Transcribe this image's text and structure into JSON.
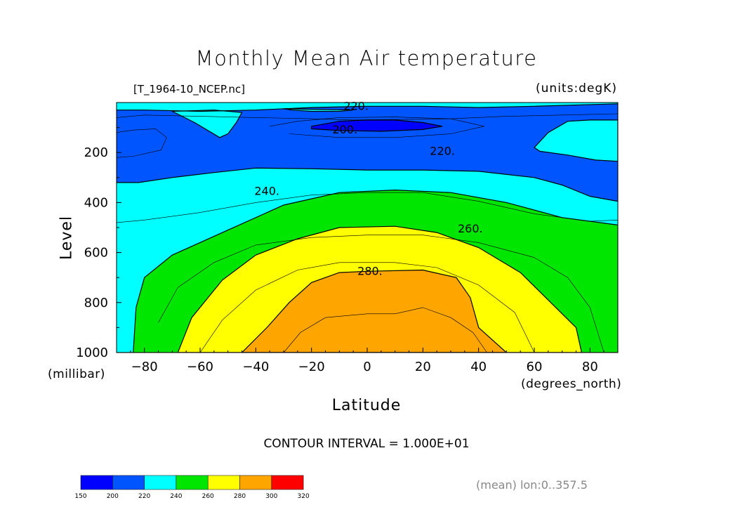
{
  "chart_data": {
    "type": "contour",
    "title": "Monthly Mean Air temperature",
    "file": "[T_1964-10_NCEP.nc]",
    "units": "(units:degK)",
    "xlabel": "Latitude",
    "x_units": "(degrees_north)",
    "ylabel": "Level",
    "y_units": "(millibar)",
    "xlim": [
      -90,
      90
    ],
    "ylim": [
      0,
      1000
    ],
    "y_inverted": true,
    "x_ticks": [
      -80,
      -60,
      -40,
      -20,
      0,
      20,
      40,
      60,
      80
    ],
    "y_ticks": [
      200,
      400,
      600,
      800,
      1000
    ],
    "contour_interval_text": "CONTOUR INTERVAL = 1.000E+01",
    "contour_labels": [
      {
        "text": "220.",
        "x": -4,
        "y": 15
      },
      {
        "text": "200.",
        "x": -8,
        "y": 110
      },
      {
        "text": "220.",
        "x": 27,
        "y": 195
      },
      {
        "text": "240.",
        "x": -36,
        "y": 355
      },
      {
        "text": "260.",
        "x": 37,
        "y": 505
      },
      {
        "text": "280.",
        "x": 1,
        "y": 675
      }
    ],
    "levels": [
      150,
      200,
      220,
      240,
      260,
      280,
      300,
      320
    ],
    "band_colors": [
      "#0000ff",
      "#0055ff",
      "#00ffff",
      "#00e600",
      "#ffff00",
      "#ffa500",
      "#ff0000"
    ],
    "regions": [
      {
        "band": "#00ffff",
        "lower": 220,
        "points": [
          [
            -90,
            0
          ],
          [
            90,
            0
          ],
          [
            90,
            1000
          ],
          [
            -90,
            1000
          ]
        ]
      },
      {
        "band": "#00e600",
        "lower": 240,
        "points": [
          [
            -90,
            1000
          ],
          [
            -84,
            1000
          ],
          [
            -83,
            820
          ],
          [
            -80,
            700
          ],
          [
            -70,
            610
          ],
          [
            -50,
            510
          ],
          [
            -30,
            410
          ],
          [
            -10,
            360
          ],
          [
            10,
            350
          ],
          [
            30,
            360
          ],
          [
            50,
            400
          ],
          [
            70,
            460
          ],
          [
            90,
            490
          ],
          [
            90,
            1000
          ]
        ]
      },
      {
        "band": "#ffff00",
        "lower": 260,
        "points": [
          [
            -68,
            1000
          ],
          [
            -63,
            860
          ],
          [
            -52,
            710
          ],
          [
            -40,
            610
          ],
          [
            -25,
            545
          ],
          [
            -10,
            500
          ],
          [
            10,
            495
          ],
          [
            25,
            520
          ],
          [
            40,
            580
          ],
          [
            55,
            680
          ],
          [
            65,
            790
          ],
          [
            75,
            900
          ],
          [
            77,
            1000
          ]
        ]
      },
      {
        "band": "#ffa500",
        "lower": 280,
        "points": [
          [
            -45,
            1000
          ],
          [
            -36,
            900
          ],
          [
            -28,
            800
          ],
          [
            -20,
            720
          ],
          [
            -10,
            680
          ],
          [
            0,
            675
          ],
          [
            20,
            670
          ],
          [
            32,
            700
          ],
          [
            37,
            780
          ],
          [
            40,
            900
          ],
          [
            50,
            1000
          ]
        ]
      },
      {
        "band": "#0055ff",
        "lower": 200,
        "points": [
          [
            -90,
            30
          ],
          [
            -80,
            30
          ],
          [
            -60,
            35
          ],
          [
            -40,
            30
          ],
          [
            -20,
            20
          ],
          [
            0,
            15
          ],
          [
            20,
            15
          ],
          [
            40,
            20
          ],
          [
            60,
            15
          ],
          [
            90,
            5
          ],
          [
            90,
            395
          ],
          [
            80,
            375
          ],
          [
            70,
            330
          ],
          [
            60,
            300
          ],
          [
            40,
            275
          ],
          [
            20,
            270
          ],
          [
            0,
            270
          ],
          [
            -20,
            265
          ],
          [
            -40,
            262
          ],
          [
            -55,
            280
          ],
          [
            -70,
            300
          ],
          [
            -82,
            320
          ],
          [
            -90,
            320
          ]
        ]
      },
      {
        "band": "#00ffff",
        "lower": 220,
        "points": [
          [
            -27,
            30
          ],
          [
            -20,
            35
          ],
          [
            -10,
            35
          ],
          [
            -5,
            30
          ],
          [
            -30,
            25
          ]
        ]
      },
      {
        "band": "#00ffff",
        "lower": 220,
        "points": [
          [
            -70,
            35
          ],
          [
            -62,
            80
          ],
          [
            -56,
            120
          ],
          [
            -53,
            140
          ],
          [
            -50,
            125
          ],
          [
            -47,
            80
          ],
          [
            -45,
            40
          ],
          [
            -55,
            30
          ]
        ]
      },
      {
        "band": "#00ffff",
        "lower": 220,
        "points": [
          [
            60,
            180
          ],
          [
            65,
            120
          ],
          [
            72,
            75
          ],
          [
            80,
            70
          ],
          [
            90,
            70
          ],
          [
            90,
            235
          ],
          [
            82,
            230
          ],
          [
            72,
            210
          ],
          [
            62,
            195
          ]
        ]
      },
      {
        "band": "#0000ff",
        "lower": 150,
        "points": [
          [
            -20,
            95
          ],
          [
            -10,
            75
          ],
          [
            0,
            70
          ],
          [
            10,
            70
          ],
          [
            20,
            80
          ],
          [
            27,
            95
          ],
          [
            20,
            108
          ],
          [
            5,
            115
          ],
          [
            -10,
            112
          ],
          [
            -20,
            105
          ]
        ]
      }
    ],
    "lines": [
      {
        "points": [
          [
            -90,
            60
          ],
          [
            -80,
            50
          ],
          [
            -60,
            55
          ],
          [
            -40,
            60
          ],
          [
            -20,
            65
          ],
          [
            -5,
            70
          ],
          [
            10,
            68
          ],
          [
            30,
            65
          ],
          [
            50,
            55
          ],
          [
            70,
            50
          ],
          [
            90,
            45
          ]
        ]
      },
      {
        "points": [
          [
            -90,
            120
          ],
          [
            -84,
            110
          ],
          [
            -76,
            105
          ],
          [
            -72,
            140
          ],
          [
            -74,
            190
          ],
          [
            -84,
            215
          ],
          [
            -90,
            220
          ]
        ]
      },
      {
        "points": [
          [
            -35,
            95
          ],
          [
            -25,
            75
          ],
          [
            -10,
            60
          ],
          [
            10,
            58
          ],
          [
            30,
            65
          ],
          [
            42,
            95
          ],
          [
            30,
            125
          ],
          [
            10,
            140
          ],
          [
            -10,
            140
          ],
          [
            -28,
            125
          ]
        ]
      },
      {
        "points": [
          [
            -90,
            480
          ],
          [
            -80,
            470
          ],
          [
            -60,
            440
          ],
          [
            -40,
            400
          ],
          [
            -20,
            370
          ],
          [
            0,
            360
          ],
          [
            20,
            360
          ],
          [
            40,
            395
          ],
          [
            60,
            445
          ],
          [
            80,
            475
          ],
          [
            90,
            470
          ]
        ]
      },
      {
        "points": [
          [
            -75,
            880
          ],
          [
            -68,
            740
          ],
          [
            -55,
            640
          ],
          [
            -40,
            570
          ],
          [
            -20,
            540
          ],
          [
            0,
            530
          ],
          [
            20,
            530
          ],
          [
            40,
            560
          ],
          [
            60,
            620
          ],
          [
            72,
            700
          ],
          [
            80,
            820
          ],
          [
            85,
            1000
          ]
        ]
      },
      {
        "points": [
          [
            -60,
            1000
          ],
          [
            -52,
            870
          ],
          [
            -40,
            750
          ],
          [
            -25,
            670
          ],
          [
            -10,
            640
          ],
          [
            10,
            640
          ],
          [
            25,
            660
          ],
          [
            40,
            730
          ],
          [
            53,
            840
          ],
          [
            60,
            1000
          ]
        ]
      },
      {
        "points": [
          [
            -30,
            1000
          ],
          [
            -24,
            920
          ],
          [
            -15,
            860
          ],
          [
            0,
            845
          ],
          [
            10,
            845
          ],
          [
            20,
            820
          ],
          [
            30,
            860
          ],
          [
            38,
            920
          ],
          [
            43,
            1000
          ]
        ]
      }
    ]
  },
  "colorbar": {
    "labels": [
      "150",
      "200",
      "220",
      "240",
      "260",
      "280",
      "300",
      "320"
    ],
    "colors": [
      "#0000ff",
      "#0055ff",
      "#00ffff",
      "#00e600",
      "#ffff00",
      "#ffa500",
      "#ff0000"
    ]
  },
  "footer": {
    "mean_text": "(mean) lon:0..357.5"
  }
}
